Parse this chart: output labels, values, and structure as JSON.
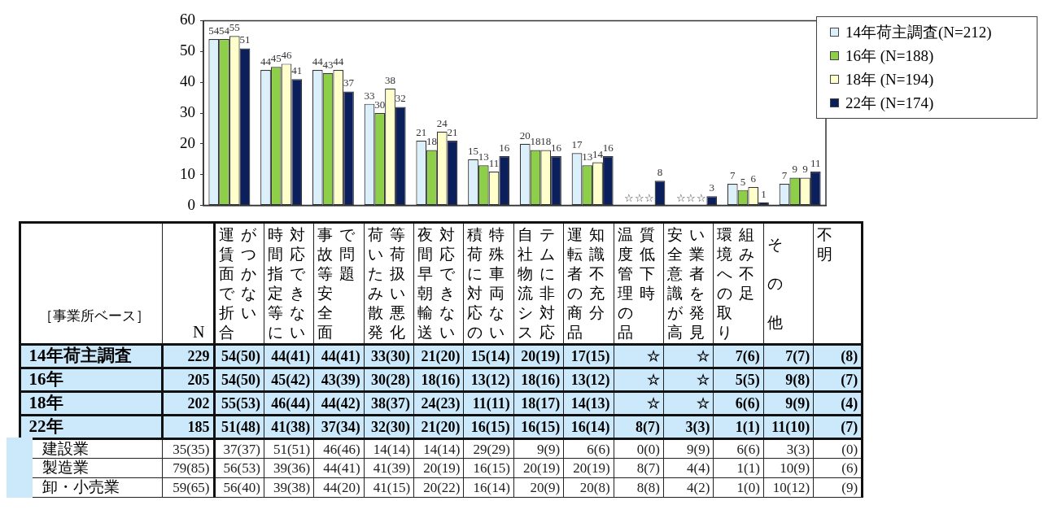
{
  "chart_data": [
    {
      "type": "bar",
      "categories": [
        "運賃面で折合がつかない",
        "時間指定等に対応できない",
        "事故等安全面で問題",
        "荷いたみ散発等荷扱い悪化",
        "夜間早朝輸送対応できない",
        "積荷に対応の特殊車両ない",
        "自社物流システムに非対応",
        "運転者の商品知識不充分",
        "温度管理の品質低下時",
        "安全意識が高い業者を発見",
        "環境への取り組み不足",
        "その他"
      ],
      "series": [
        {
          "name": "14年荷主調査(N=212)",
          "color": "#dcf0fb",
          "values": [
            54,
            44,
            44,
            33,
            21,
            15,
            20,
            17,
            null,
            null,
            7,
            7
          ],
          "value_labels": [
            "54",
            "44",
            "44",
            "33",
            "21",
            "15",
            "20",
            "17",
            "☆",
            "☆",
            "7",
            "7"
          ]
        },
        {
          "name": "16年 (N=188)",
          "color": "#8ecf4a",
          "values": [
            54,
            45,
            43,
            30,
            18,
            13,
            18,
            13,
            null,
            null,
            5,
            9
          ],
          "value_labels": [
            "54",
            "45",
            "43",
            "30",
            "18",
            "13",
            "18",
            "13",
            "☆",
            "☆",
            "5",
            "9"
          ]
        },
        {
          "name": "18年 (N=194)",
          "color": "#ffffcc",
          "values": [
            55,
            46,
            44,
            38,
            24,
            11,
            18,
            14,
            null,
            null,
            6,
            9
          ],
          "value_labels": [
            "55",
            "46",
            "44",
            "38",
            "24",
            "11",
            "18",
            "14",
            "☆",
            "☆",
            "6",
            "9"
          ]
        },
        {
          "name": "22年 (N=174)",
          "color": "#0b1f5c",
          "values": [
            51,
            41,
            37,
            32,
            21,
            16,
            16,
            16,
            8,
            3,
            1,
            11
          ],
          "value_labels": [
            "51",
            "41",
            "37",
            "32",
            "21",
            "16",
            "16",
            "16",
            "8",
            "3",
            "1",
            "11"
          ]
        }
      ],
      "ylim": [
        0,
        60
      ],
      "yticks": [
        0,
        10,
        20,
        30,
        40,
        50,
        60
      ],
      "grid": false,
      "legend": "top right"
    },
    {
      "type": "other",
      "annotations": [
        "［事業所ベース］"
      ],
      "categories": [
        "N",
        null,
        null,
        null,
        null,
        null,
        null,
        null,
        null,
        null,
        null,
        null,
        null,
        "不明"
      ],
      "y_categories": [
        "14年荷主調査",
        "16年",
        "18年",
        "22年",
        "建設業",
        "製造業",
        "卸・小売業"
      ],
      "cell_labels": [
        [
          "229",
          "54(50)",
          "44(41)",
          "44(41)",
          "33(30)",
          "21(20)",
          "15(14)",
          "20(19)",
          "17(15)",
          "☆",
          "☆",
          "7(6)",
          "7(7)",
          "(8)"
        ],
        [
          "205",
          "54(50)",
          "45(42)",
          "43(39)",
          "30(28)",
          "18(16)",
          "13(12)",
          "18(16)",
          "13(12)",
          "☆",
          "☆",
          "5(5)",
          "9(8)",
          "(7)"
        ],
        [
          "202",
          "55(53)",
          "46(44)",
          "44(42)",
          "38(37)",
          "24(23)",
          "11(11)",
          "18(17)",
          "14(13)",
          "☆",
          "☆",
          "6(6)",
          "9(9)",
          "(4)"
        ],
        [
          "185",
          "51(48)",
          "41(38)",
          "37(34)",
          "32(30)",
          "21(20)",
          "16(15)",
          "16(15)",
          "16(14)",
          "8(7)",
          "3(3)",
          "1(1)",
          "11(10)",
          "(7)"
        ],
        [
          "35(35)",
          "37(37)",
          "51(51)",
          "46(46)",
          "14(14)",
          "14(14)",
          "29(29)",
          "9(9)",
          "6(6)",
          "0(0)",
          "9(9)",
          "6(6)",
          "3(3)",
          "(0)"
        ],
        [
          "79(85)",
          "56(53)",
          "39(36)",
          "44(41)",
          "41(39)",
          "20(19)",
          "16(15)",
          "20(19)",
          "20(19)",
          "8(7)",
          "4(4)",
          "1(1)",
          "10(9)",
          "(6)"
        ],
        [
          "59(65)",
          "56(40)",
          "39(38)",
          "44(20)",
          "41(15)",
          "20(22)",
          "16(14)",
          "20(9)",
          "20(8)",
          "8(8)",
          "4(2)",
          "1(0)",
          "10(12)",
          "(9)"
        ]
      ]
    }
  ]
}
